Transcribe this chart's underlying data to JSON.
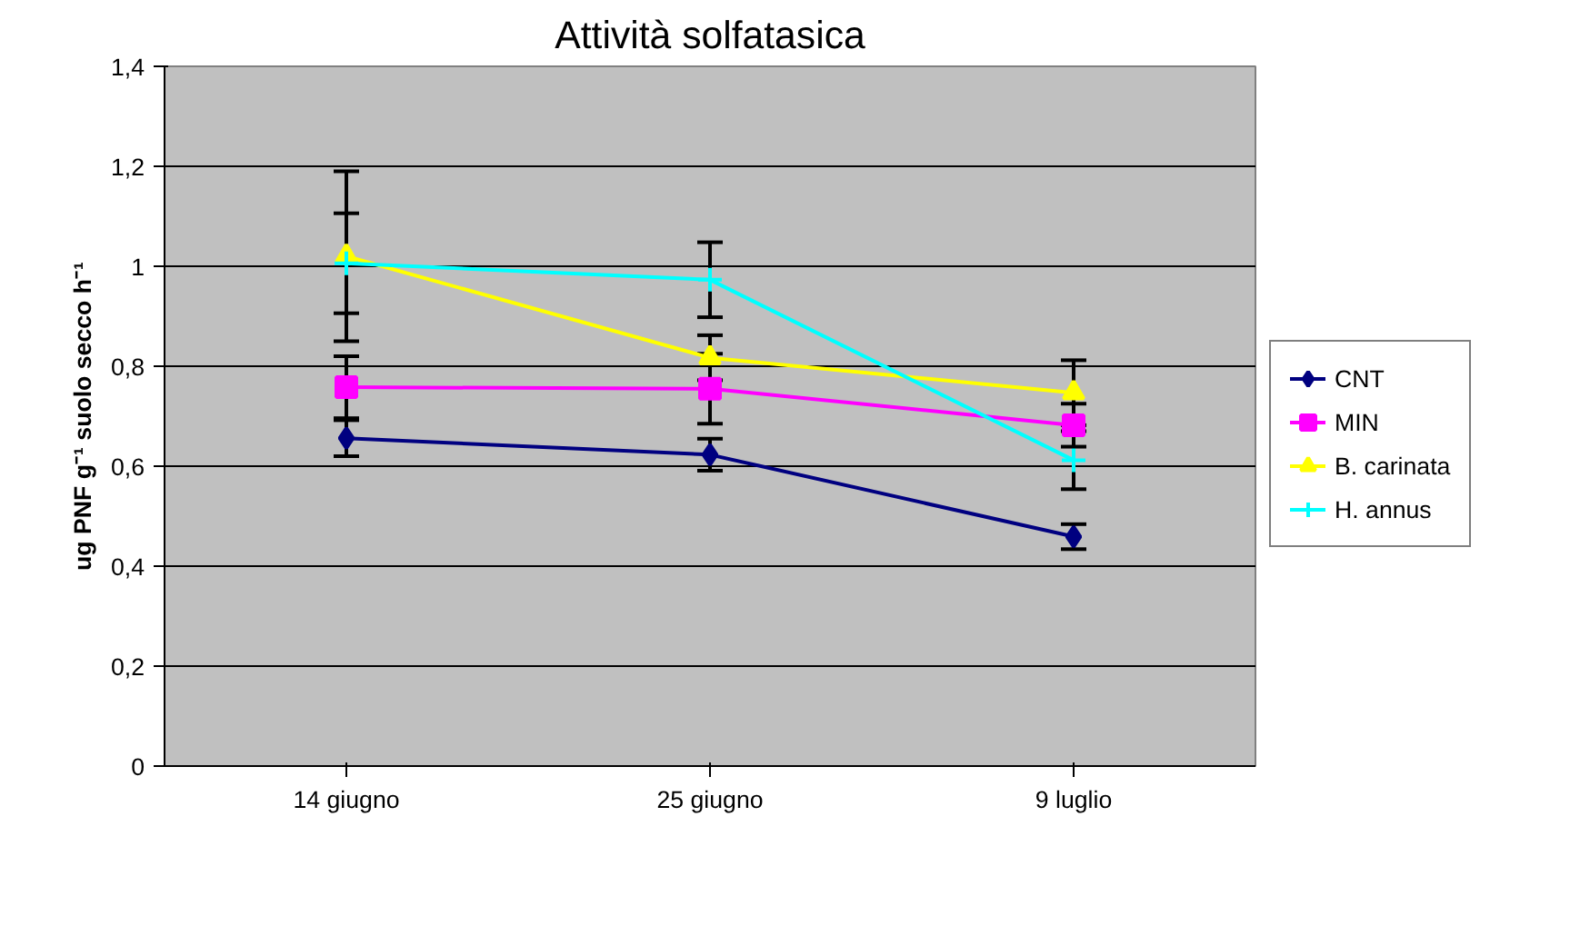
{
  "chart_data": {
    "type": "line",
    "title": "Attività solfatasica",
    "ylabel": "ug PNF g⁻¹ suolo secco h⁻¹",
    "categories": [
      "14 giugno",
      "25 giugno",
      "9 luglio"
    ],
    "series": [
      {
        "name": "CNT",
        "color": "#000080",
        "marker": "diamond",
        "values": [
          0.656,
          0.623,
          0.459
        ],
        "errors": [
          0.036,
          0.032,
          0.025
        ]
      },
      {
        "name": "MIN",
        "color": "#ff00ff",
        "marker": "square",
        "values": [
          0.758,
          0.755,
          0.682
        ],
        "errors": [
          0.062,
          0.07,
          0.043
        ]
      },
      {
        "name": "B. carinata",
        "color": "#ffff00",
        "marker": "triangle",
        "values": [
          1.02,
          0.817,
          0.747
        ],
        "errors": [
          0.17,
          0.045,
          0.065
        ]
      },
      {
        "name": "H. annus",
        "color": "#00ffff",
        "marker": "cross",
        "values": [
          1.006,
          0.973,
          0.612
        ],
        "errors": [
          0.1,
          0.075,
          0.058
        ]
      }
    ],
    "ylim": [
      0,
      1.4
    ],
    "yticks": [
      0,
      {
        "value": 0.2,
        "label": "0,2"
      },
      {
        "value": 0.4,
        "label": "0,4"
      },
      {
        "value": 0.6,
        "label": "0,6"
      },
      {
        "value": 0.8,
        "label": "0,8"
      },
      1,
      {
        "value": 1.2,
        "label": "1,2"
      },
      {
        "value": 1.4,
        "label": "1,4"
      }
    ],
    "grid": "y",
    "legend": "right"
  }
}
